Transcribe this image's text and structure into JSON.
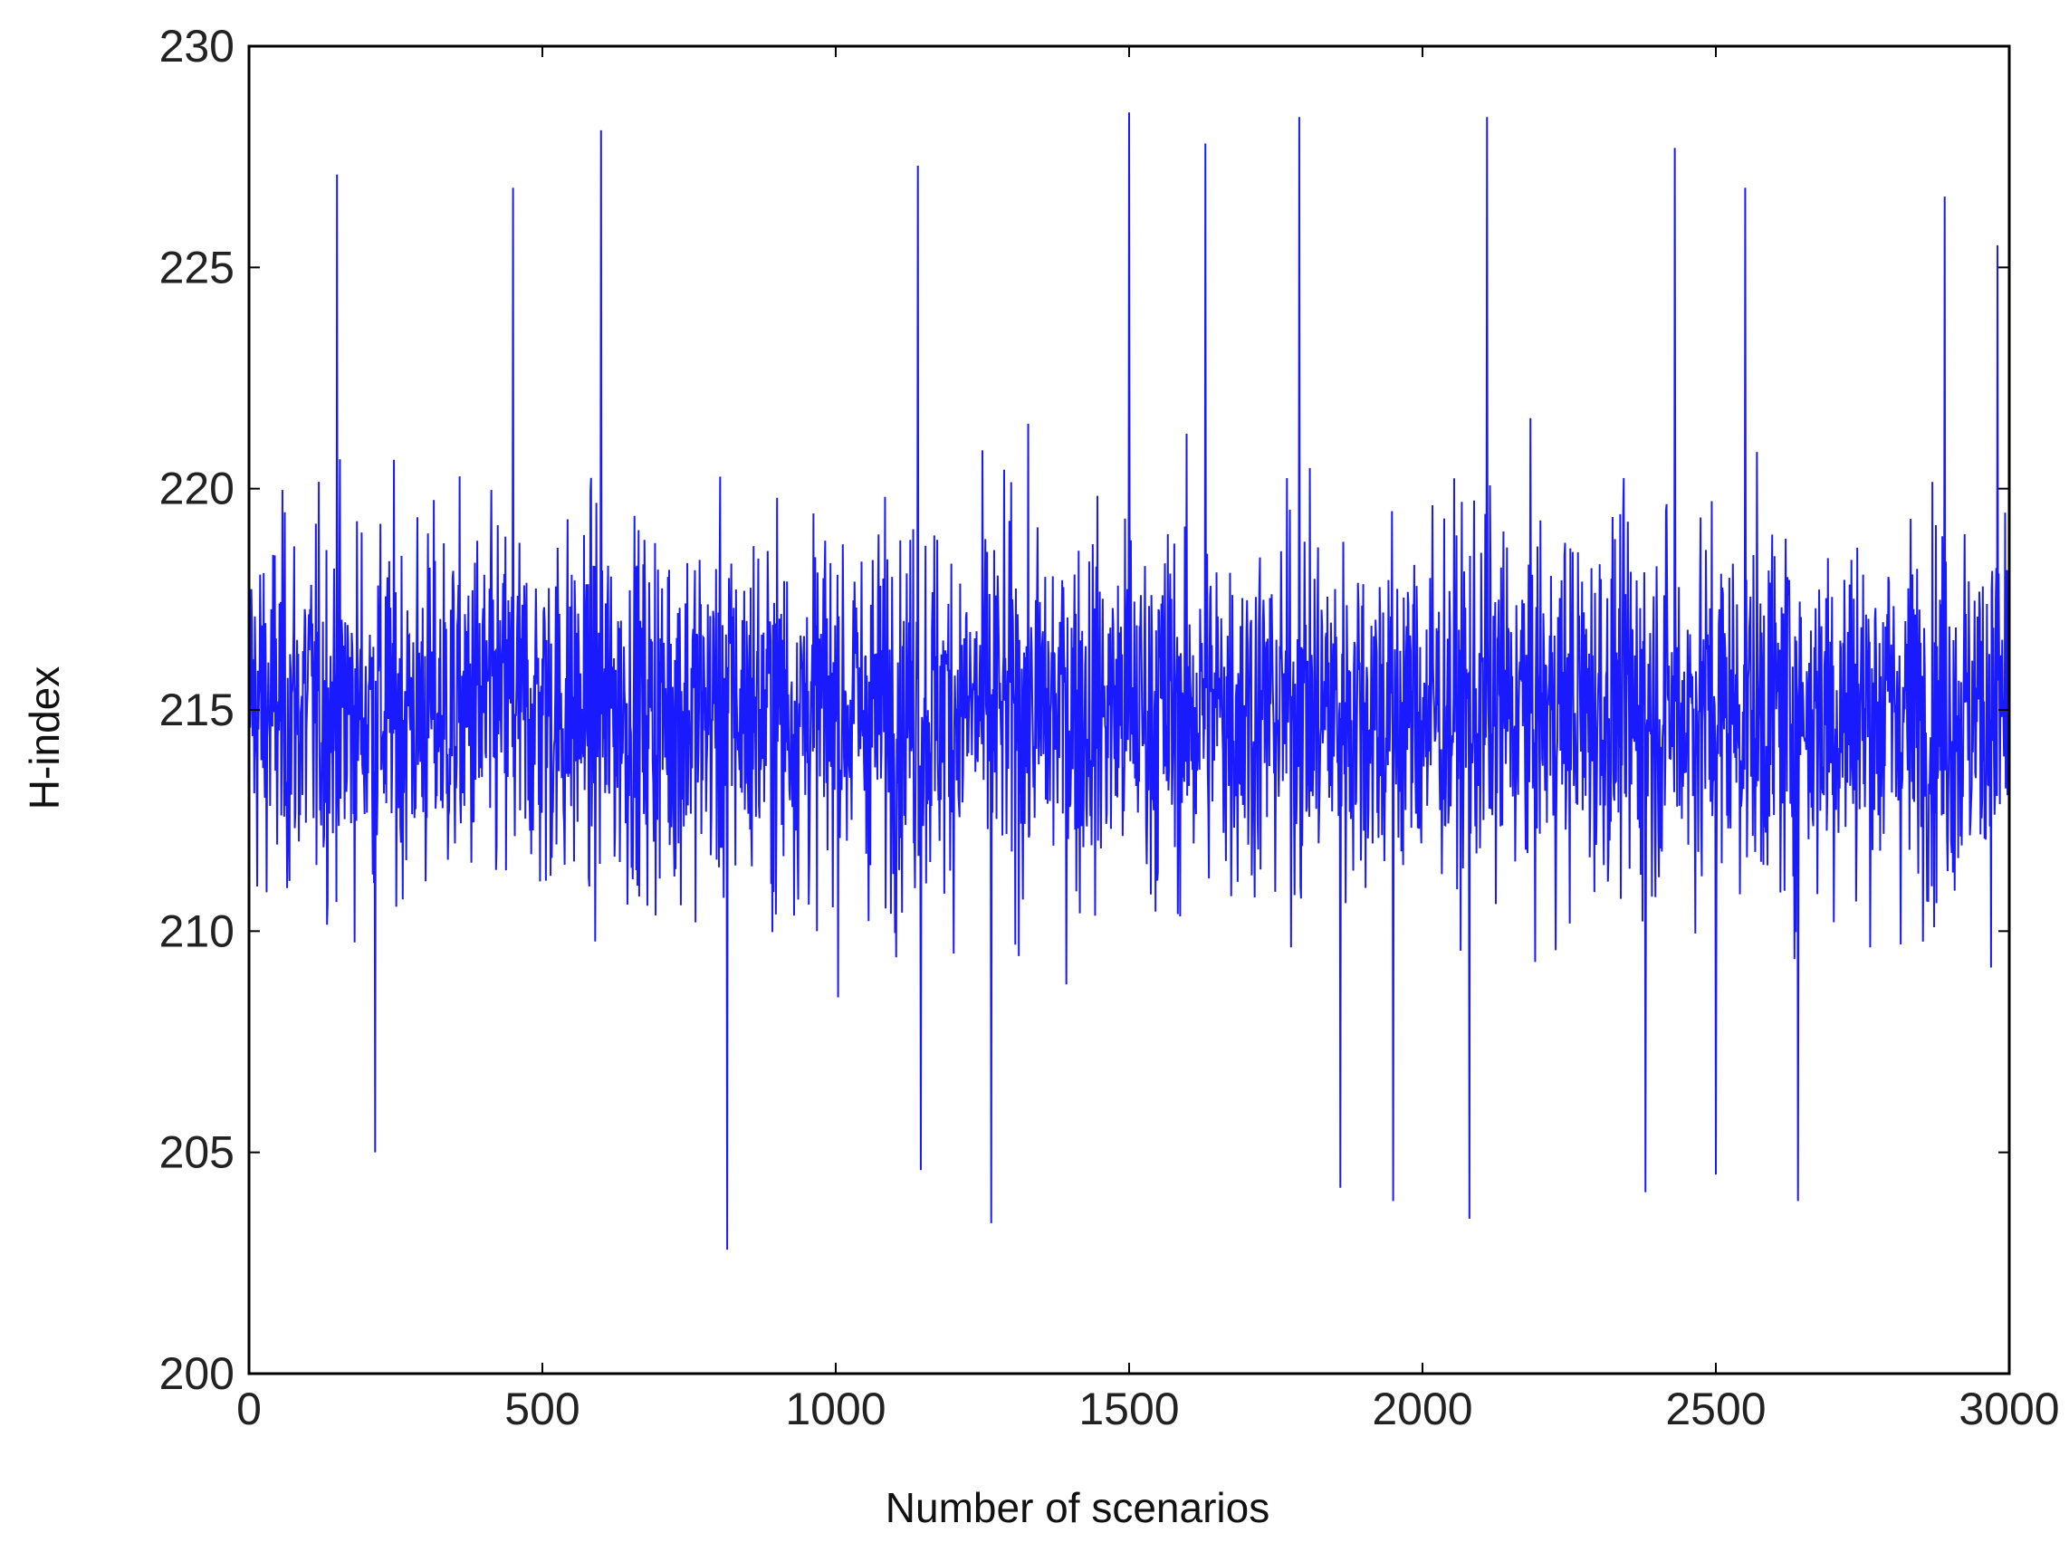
{
  "chart_data": {
    "type": "line",
    "title": "",
    "xlabel": "Number of scenarios",
    "ylabel": "H-index",
    "xlim": [
      0,
      3000
    ],
    "ylim": [
      200,
      230
    ],
    "x_ticks": [
      0,
      500,
      1000,
      1500,
      2000,
      2500,
      3000
    ],
    "x_tick_labels": [
      "0",
      "500",
      "1000",
      "1500",
      "2000",
      "2500",
      "3000"
    ],
    "y_ticks": [
      200,
      205,
      210,
      215,
      220,
      225,
      230
    ],
    "y_tick_labels": [
      "200",
      "205",
      "210",
      "215",
      "220",
      "225",
      "230"
    ],
    "grid": false,
    "legend": "none",
    "line_color": "#1a1aff",
    "series": [
      {
        "x": [
          1,
          2,
          3
        ],
        "values": [
          215.2,
          214.6,
          215.4
        ]
      }
    ],
    "summary_stats": {
      "n_points": 3000,
      "mean": 215,
      "min": 202.8,
      "max": 228.5
    },
    "notable_points": [
      {
        "x": 150,
        "y": 227.1
      },
      {
        "x": 215,
        "y": 205.0
      },
      {
        "x": 450,
        "y": 226.8
      },
      {
        "x": 600,
        "y": 228.1
      },
      {
        "x": 815,
        "y": 202.8
      },
      {
        "x": 1140,
        "y": 227.3
      },
      {
        "x": 1145,
        "y": 204.6
      },
      {
        "x": 1265,
        "y": 203.4
      },
      {
        "x": 1500,
        "y": 228.5
      },
      {
        "x": 1630,
        "y": 227.8
      },
      {
        "x": 1790,
        "y": 228.4
      },
      {
        "x": 1860,
        "y": 204.2
      },
      {
        "x": 1950,
        "y": 203.9
      },
      {
        "x": 2080,
        "y": 203.5
      },
      {
        "x": 2110,
        "y": 228.4
      },
      {
        "x": 2380,
        "y": 204.1
      },
      {
        "x": 2430,
        "y": 227.7
      },
      {
        "x": 2500,
        "y": 204.5
      },
      {
        "x": 2550,
        "y": 226.8
      },
      {
        "x": 2640,
        "y": 203.9
      },
      {
        "x": 2890,
        "y": 226.6
      },
      {
        "x": 2980,
        "y": 225.5
      }
    ]
  }
}
